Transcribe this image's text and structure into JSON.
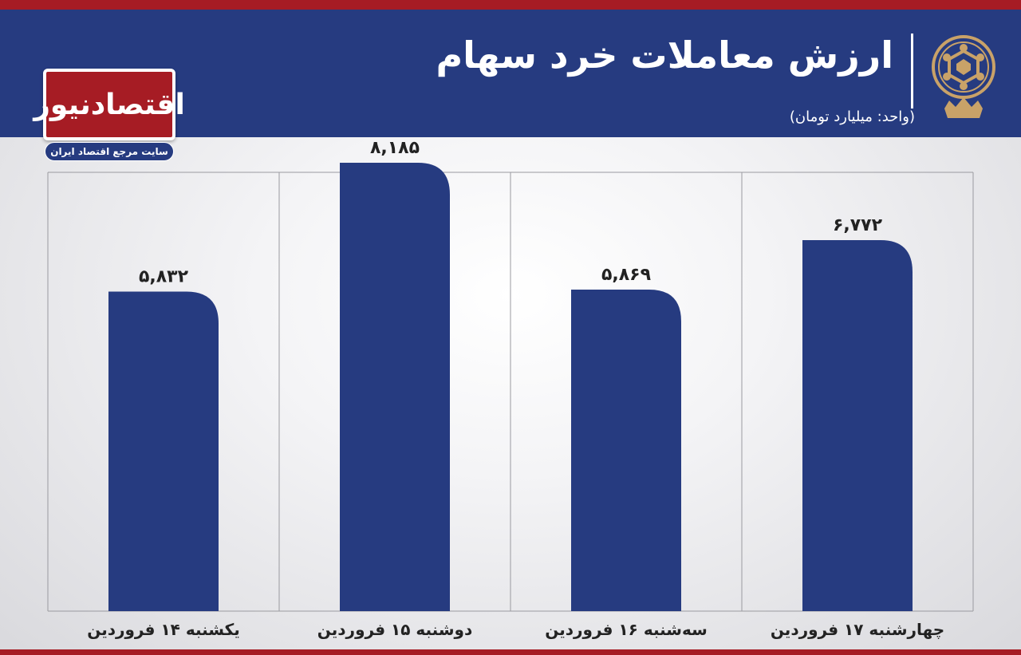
{
  "header": {
    "title": "ارزش معاملات خرد سهام",
    "unit": "(واحد: میلیارد تومان)"
  },
  "brand": {
    "name": "اقتصادنیوز",
    "tagline": "سایت مرجع اقتصاد ایران"
  },
  "colors": {
    "bar": "#263b80",
    "header": "#263b80",
    "accent": "#a61c24",
    "gold": "#c9a268"
  },
  "chart_data": {
    "type": "bar",
    "title": "ارزش معاملات خرد سهام",
    "ylabel": "",
    "xlabel": "",
    "categories": [
      "یکشنبه ۱۴ فروردین",
      "دوشنبه ۱۵ فروردین",
      "سه‌شنبه ۱۶ فروردین",
      "چهارشنبه ۱۷ فروردین"
    ],
    "values": [
      5832,
      8185,
      5869,
      6772
    ],
    "value_labels": [
      "۵,۸۳۲",
      "۸,۱۸۵",
      "۵,۸۶۹",
      "۶,۷۷۲"
    ],
    "ylim": [
      0,
      9000
    ],
    "grid": false
  }
}
